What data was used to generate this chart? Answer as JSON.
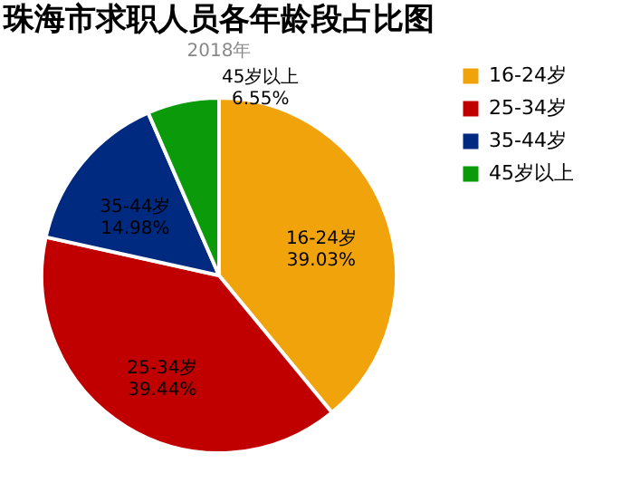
{
  "chart_data": {
    "type": "pie",
    "title": "珠海市求职人员各年龄段占比图",
    "subtitle": "2018年",
    "categories": [
      "16-24岁",
      "25-34岁",
      "35-44岁",
      "45岁以上"
    ],
    "values": [
      39.03,
      39.44,
      14.98,
      6.55
    ],
    "colors": [
      "#f0a30a",
      "#c00000",
      "#002a80",
      "#0a9a0a"
    ],
    "value_labels": [
      "16-24岁\n39.03%",
      "25-34岁\n39.44%",
      "35-44岁\n14.98%",
      "45岁以上\n6.55%"
    ],
    "legend": "right"
  }
}
